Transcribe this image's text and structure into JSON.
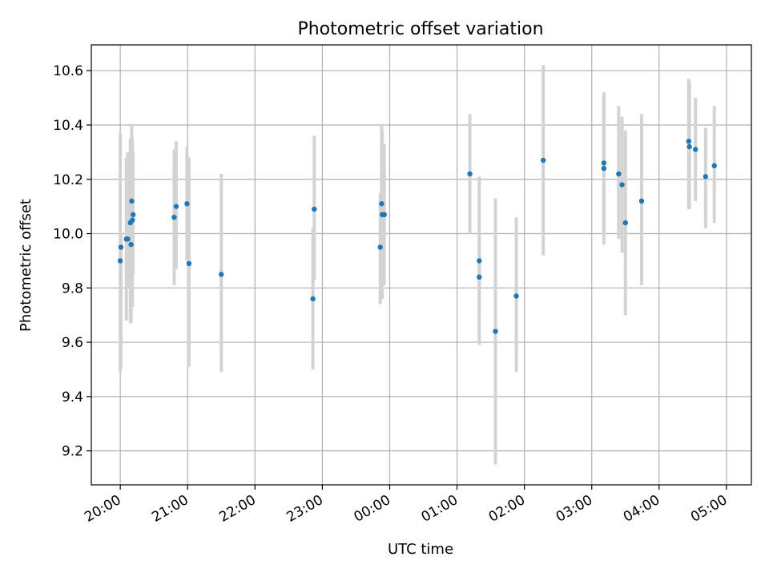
{
  "chart_data": {
    "type": "scatter",
    "title": "Photometric offset variation",
    "xlabel": "UTC time",
    "ylabel": "Photometric offset",
    "x_unit": "UTC time of night (hours; values past 24 are after midnight)",
    "xlim": [
      19.57,
      29.37
    ],
    "ylim": [
      9.075,
      10.695
    ],
    "x_ticks": [
      {
        "value": 20,
        "label": "20:00"
      },
      {
        "value": 21,
        "label": "21:00"
      },
      {
        "value": 22,
        "label": "22:00"
      },
      {
        "value": 23,
        "label": "23:00"
      },
      {
        "value": 24,
        "label": "00:00"
      },
      {
        "value": 25,
        "label": "01:00"
      },
      {
        "value": 26,
        "label": "02:00"
      },
      {
        "value": 27,
        "label": "03:00"
      },
      {
        "value": 28,
        "label": "04:00"
      },
      {
        "value": 29,
        "label": "05:00"
      }
    ],
    "y_ticks": [
      {
        "value": 9.2,
        "label": "9.2"
      },
      {
        "value": 9.4,
        "label": "9.4"
      },
      {
        "value": 9.6,
        "label": "9.6"
      },
      {
        "value": 9.8,
        "label": "9.8"
      },
      {
        "value": 10.0,
        "label": "10.0"
      },
      {
        "value": 10.2,
        "label": "10.2"
      },
      {
        "value": 10.4,
        "label": "10.4"
      },
      {
        "value": 10.6,
        "label": "10.6"
      }
    ],
    "grid": true,
    "marker_color": "#1f77b4",
    "errorbar_color": "#d3d3d3",
    "points": [
      {
        "x": 20.0,
        "y": 9.9,
        "ylo": 9.49,
        "yhi": 10.37
      },
      {
        "x": 20.01,
        "y": 9.95,
        "ylo": 9.51,
        "yhi": 10.0
      },
      {
        "x": 20.09,
        "y": 9.98,
        "ylo": 9.68,
        "yhi": 10.28
      },
      {
        "x": 20.11,
        "y": 9.98,
        "ylo": 9.8,
        "yhi": 10.3
      },
      {
        "x": 20.15,
        "y": 10.04,
        "ylo": 9.67,
        "yhi": 10.35
      },
      {
        "x": 20.16,
        "y": 9.96,
        "ylo": 9.67,
        "yhi": 10.2
      },
      {
        "x": 20.17,
        "y": 10.12,
        "ylo": 9.81,
        "yhi": 10.4
      },
      {
        "x": 20.18,
        "y": 10.05,
        "ylo": 9.73,
        "yhi": 10.35
      },
      {
        "x": 20.19,
        "y": 10.07,
        "ylo": 9.85,
        "yhi": 10.3
      },
      {
        "x": 20.8,
        "y": 10.06,
        "ylo": 9.81,
        "yhi": 10.31
      },
      {
        "x": 20.83,
        "y": 10.1,
        "ylo": 9.87,
        "yhi": 10.34
      },
      {
        "x": 20.99,
        "y": 10.11,
        "ylo": 9.9,
        "yhi": 10.32
      },
      {
        "x": 21.02,
        "y": 9.89,
        "ylo": 9.51,
        "yhi": 10.28
      },
      {
        "x": 21.5,
        "y": 9.85,
        "ylo": 9.49,
        "yhi": 10.22
      },
      {
        "x": 22.86,
        "y": 9.76,
        "ylo": 9.5,
        "yhi": 10.02
      },
      {
        "x": 22.88,
        "y": 10.09,
        "ylo": 9.83,
        "yhi": 10.36
      },
      {
        "x": 23.86,
        "y": 9.95,
        "ylo": 9.74,
        "yhi": 10.15
      },
      {
        "x": 23.88,
        "y": 10.11,
        "ylo": 9.81,
        "yhi": 10.4
      },
      {
        "x": 23.89,
        "y": 10.07,
        "ylo": 9.76,
        "yhi": 10.38
      },
      {
        "x": 23.92,
        "y": 10.07,
        "ylo": 9.81,
        "yhi": 10.33
      },
      {
        "x": 25.19,
        "y": 10.22,
        "ylo": 10.0,
        "yhi": 10.44
      },
      {
        "x": 25.33,
        "y": 9.9,
        "ylo": 9.59,
        "yhi": 10.21
      },
      {
        "x": 25.33,
        "y": 9.84,
        "ylo": 9.7,
        "yhi": 10.0
      },
      {
        "x": 25.57,
        "y": 9.64,
        "ylo": 9.15,
        "yhi": 10.13
      },
      {
        "x": 25.88,
        "y": 9.77,
        "ylo": 9.49,
        "yhi": 10.06
      },
      {
        "x": 26.28,
        "y": 10.27,
        "ylo": 9.92,
        "yhi": 10.62
      },
      {
        "x": 27.18,
        "y": 10.26,
        "ylo": 10.0,
        "yhi": 10.52
      },
      {
        "x": 27.18,
        "y": 10.24,
        "ylo": 9.96,
        "yhi": 10.51
      },
      {
        "x": 27.4,
        "y": 10.22,
        "ylo": 9.98,
        "yhi": 10.47
      },
      {
        "x": 27.45,
        "y": 10.18,
        "ylo": 9.93,
        "yhi": 10.43
      },
      {
        "x": 27.5,
        "y": 10.04,
        "ylo": 9.7,
        "yhi": 10.38
      },
      {
        "x": 27.74,
        "y": 10.12,
        "ylo": 9.81,
        "yhi": 10.44
      },
      {
        "x": 28.44,
        "y": 10.34,
        "ylo": 10.09,
        "yhi": 10.57
      },
      {
        "x": 28.45,
        "y": 10.32,
        "ylo": 10.09,
        "yhi": 10.56
      },
      {
        "x": 28.54,
        "y": 10.31,
        "ylo": 10.12,
        "yhi": 10.5
      },
      {
        "x": 28.69,
        "y": 10.21,
        "ylo": 10.02,
        "yhi": 10.39
      },
      {
        "x": 28.82,
        "y": 10.25,
        "ylo": 10.04,
        "yhi": 10.47
      }
    ]
  }
}
